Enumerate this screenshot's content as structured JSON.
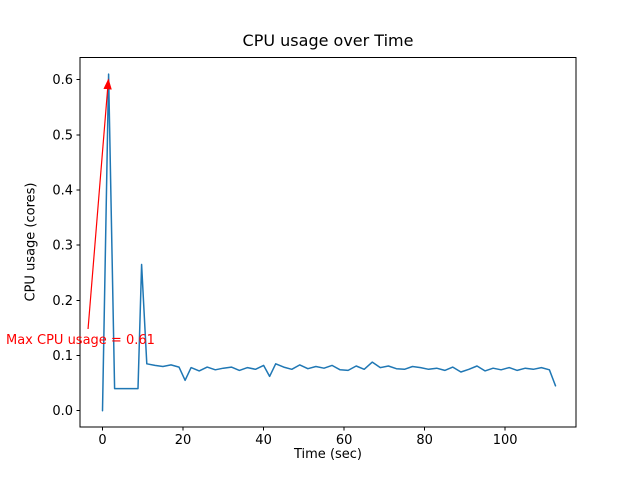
{
  "figure": {
    "background": "#ffffff"
  },
  "chart_data": {
    "type": "line",
    "title": "CPU usage over Time",
    "xlabel": "Time (sec)",
    "ylabel": "CPU usage (cores)",
    "xlim": [
      -5.6,
      117.6
    ],
    "ylim": [
      -0.03,
      0.64
    ],
    "xticks": [
      0,
      20,
      40,
      60,
      80,
      100
    ],
    "yticks": [
      0.0,
      0.1,
      0.2,
      0.3,
      0.4,
      0.5,
      0.6
    ],
    "grid": false,
    "legend": null,
    "series": [
      {
        "name": "CPU usage",
        "color": "#1f77b4",
        "x": [
          0,
          1.5,
          3,
          4.5,
          6,
          7.5,
          8.8,
          9.7,
          11,
          13,
          15,
          17,
          19,
          20.5,
          22,
          24,
          26,
          28,
          30,
          32,
          34,
          36,
          38,
          40,
          41.5,
          43,
          45,
          47,
          49,
          51,
          53,
          55,
          57,
          59,
          61,
          63,
          65,
          67,
          69,
          71,
          73,
          75,
          77,
          79,
          81,
          83,
          85,
          87,
          89,
          91,
          93,
          95,
          97,
          99,
          101,
          103,
          105,
          107,
          109,
          111,
          112.5
        ],
        "y": [
          0.0,
          0.61,
          0.04,
          0.04,
          0.04,
          0.04,
          0.04,
          0.265,
          0.085,
          0.082,
          0.08,
          0.083,
          0.079,
          0.055,
          0.078,
          0.072,
          0.079,
          0.074,
          0.077,
          0.079,
          0.073,
          0.078,
          0.075,
          0.082,
          0.062,
          0.085,
          0.079,
          0.075,
          0.083,
          0.076,
          0.08,
          0.077,
          0.082,
          0.074,
          0.073,
          0.081,
          0.075,
          0.088,
          0.078,
          0.081,
          0.076,
          0.075,
          0.08,
          0.078,
          0.075,
          0.077,
          0.073,
          0.079,
          0.07,
          0.075,
          0.081,
          0.072,
          0.077,
          0.074,
          0.078,
          0.073,
          0.077,
          0.075,
          0.078,
          0.074,
          0.045
        ]
      }
    ],
    "annotation": {
      "text": "Max CPU usage = 0.61",
      "color": "#ff0000",
      "text_position": [
        -23.5,
        0.12
      ],
      "arrow_from": [
        -3.6,
        0.148
      ],
      "arrow_to": [
        1.45,
        0.6
      ]
    }
  }
}
